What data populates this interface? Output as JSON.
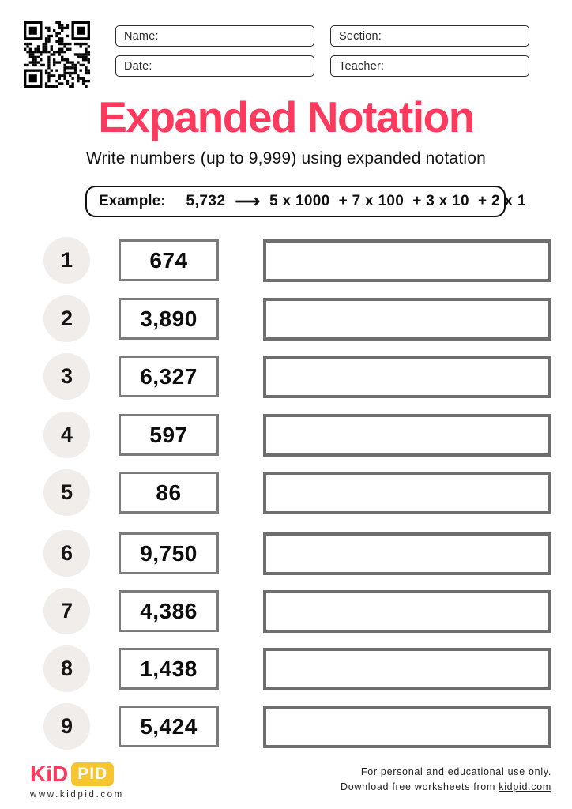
{
  "header": {
    "fields": [
      {
        "label": "Name:"
      },
      {
        "label": "Section:"
      },
      {
        "label": "Date:"
      },
      {
        "label": "Teacher:"
      }
    ]
  },
  "title": "Expanded Notation",
  "subtitle": "Write numbers (up to 9,999) using expanded notation",
  "example": {
    "label": "Example:",
    "number": "5,732",
    "arrow": "⟶",
    "expansion": "5 x 1000  + 7 x 100  + 3 x 10  + 2 x 1"
  },
  "problems": [
    {
      "num": "1",
      "value": "674"
    },
    {
      "num": "2",
      "value": "3,890"
    },
    {
      "num": "3",
      "value": "6,327"
    },
    {
      "num": "4",
      "value": "597"
    },
    {
      "num": "5",
      "value": "86"
    },
    {
      "num": "6",
      "value": "9,750"
    },
    {
      "num": "7",
      "value": "4,386"
    },
    {
      "num": "8",
      "value": "1,438"
    },
    {
      "num": "9",
      "value": "5,424"
    }
  ],
  "footer": {
    "logo_kid": "KiD",
    "logo_pid": "PID",
    "logo_url": "www.kidpid.com",
    "note_line1": "For personal and educational use only.",
    "note_line2_prefix": "Download free worksheets from ",
    "note_link": "kidpid.com"
  },
  "colors": {
    "accent_pink": "#FB3A5D",
    "logo_yellow": "#F7C52F",
    "circle_bg": "#F0EDEA",
    "box_border_gray": "#6e6e6e"
  }
}
